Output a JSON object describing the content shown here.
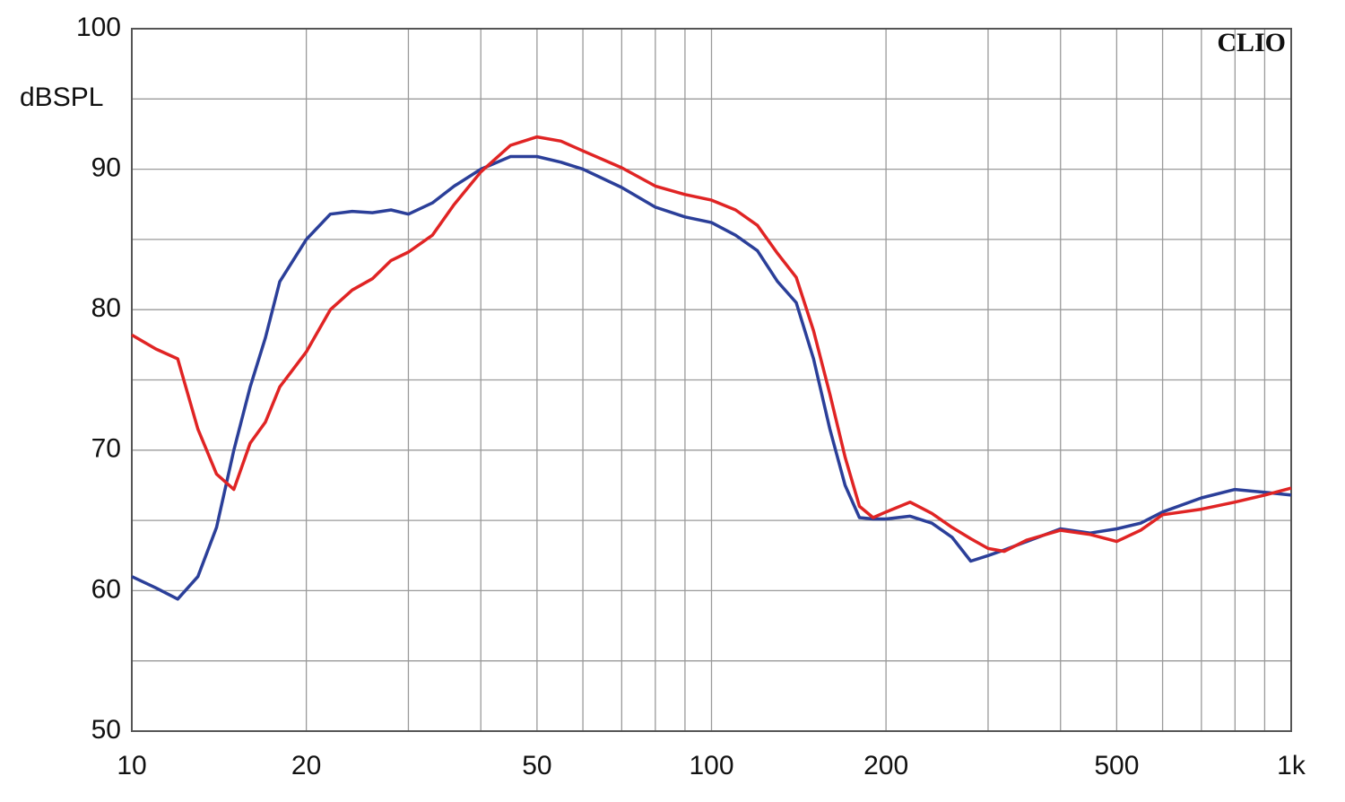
{
  "chart_data": {
    "type": "line",
    "y_label": "dBSPL",
    "annotation": "CLIO",
    "x_scale": "log",
    "grid": true,
    "xlim": [
      10,
      1000
    ],
    "ylim": [
      50,
      100
    ],
    "xticks": [
      10,
      20,
      50,
      100,
      200,
      500,
      {
        "value": 1000,
        "label": "1k"
      }
    ],
    "x_minor_ticks": [
      30,
      40,
      60,
      70,
      80,
      90,
      300,
      400,
      600,
      700,
      800,
      900
    ],
    "yticks": [
      50,
      60,
      70,
      80,
      90,
      100
    ],
    "y_minor_ticks": [
      55,
      65,
      75,
      85,
      95
    ],
    "x": [
      10,
      11,
      12,
      13,
      14,
      15,
      16,
      17,
      18,
      20,
      22,
      24,
      26,
      28,
      30,
      33,
      36,
      40,
      45,
      50,
      55,
      60,
      70,
      80,
      90,
      100,
      110,
      120,
      130,
      140,
      150,
      160,
      170,
      180,
      190,
      200,
      220,
      240,
      260,
      280,
      300,
      320,
      350,
      400,
      450,
      500,
      550,
      600,
      700,
      800,
      900,
      1000
    ],
    "series": [
      {
        "color": "#2b3f99",
        "values": [
          61.0,
          60.2,
          59.4,
          61.0,
          64.5,
          70.0,
          74.5,
          78.0,
          82.0,
          85.0,
          86.8,
          87.0,
          86.9,
          87.1,
          86.8,
          87.6,
          88.8,
          90.0,
          90.9,
          90.9,
          90.5,
          90.0,
          88.7,
          87.3,
          86.6,
          86.2,
          85.3,
          84.2,
          82.0,
          80.5,
          76.5,
          71.5,
          67.5,
          65.2,
          65.1,
          65.1,
          65.3,
          64.8,
          63.8,
          62.1,
          62.5,
          62.9,
          63.5,
          64.4,
          64.1,
          64.4,
          64.8,
          65.6,
          66.6,
          67.2,
          67.0,
          66.8
        ]
      },
      {
        "color": "#e02424",
        "values": [
          78.2,
          77.2,
          76.5,
          71.5,
          68.3,
          67.2,
          70.5,
          72.0,
          74.5,
          77.0,
          80.0,
          81.4,
          82.2,
          83.5,
          84.1,
          85.3,
          87.5,
          89.8,
          91.7,
          92.3,
          92.0,
          91.3,
          90.1,
          88.8,
          88.2,
          87.8,
          87.1,
          86.0,
          84.0,
          82.3,
          78.5,
          74.0,
          69.5,
          66.0,
          65.2,
          65.6,
          66.3,
          65.5,
          64.5,
          63.7,
          63.0,
          62.8,
          63.6,
          64.3,
          64.0,
          63.5,
          64.3,
          65.4,
          65.8,
          66.3,
          66.8,
          67.3
        ]
      }
    ]
  }
}
